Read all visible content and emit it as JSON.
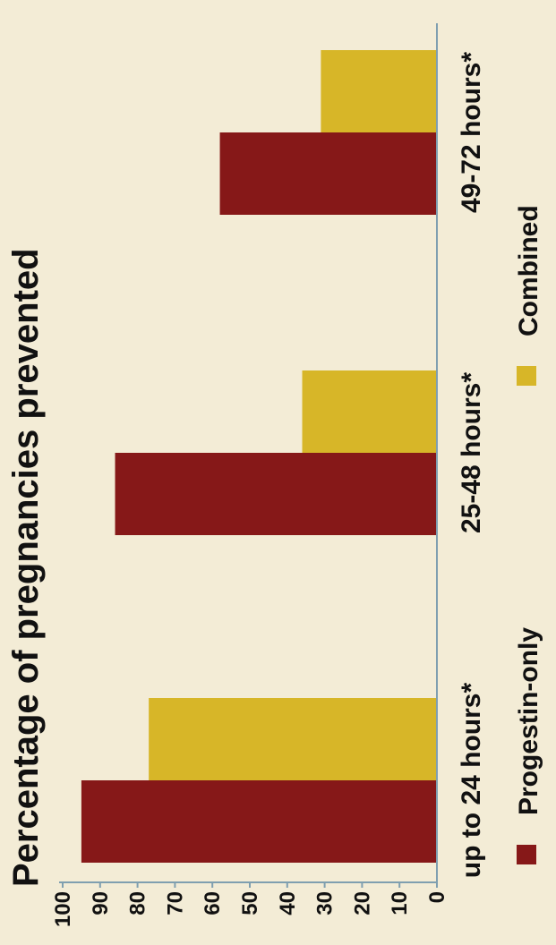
{
  "colors": {
    "background": "#f3ecd6",
    "axis": "#7f9fb0",
    "progestin": "#861818",
    "combined": "#d7b628"
  },
  "chart_data": {
    "type": "bar",
    "orientation": "rotated 90deg counter-clockwise",
    "title": "Percentage of pregnancies prevented",
    "categories": [
      "up to 24 hours*",
      "25-48 hours*",
      "49-72 hours*"
    ],
    "series": [
      {
        "name": "Progestin-only",
        "values": [
          95,
          86,
          58
        ]
      },
      {
        "name": "Combined",
        "values": [
          77,
          36,
          31
        ]
      }
    ],
    "ylim": [
      0,
      100
    ],
    "yticks": [
      "0",
      "10",
      "20",
      "30",
      "40",
      "50",
      "60",
      "70",
      "80",
      "90",
      "100"
    ],
    "legend_position": "bottom",
    "grid": false
  }
}
